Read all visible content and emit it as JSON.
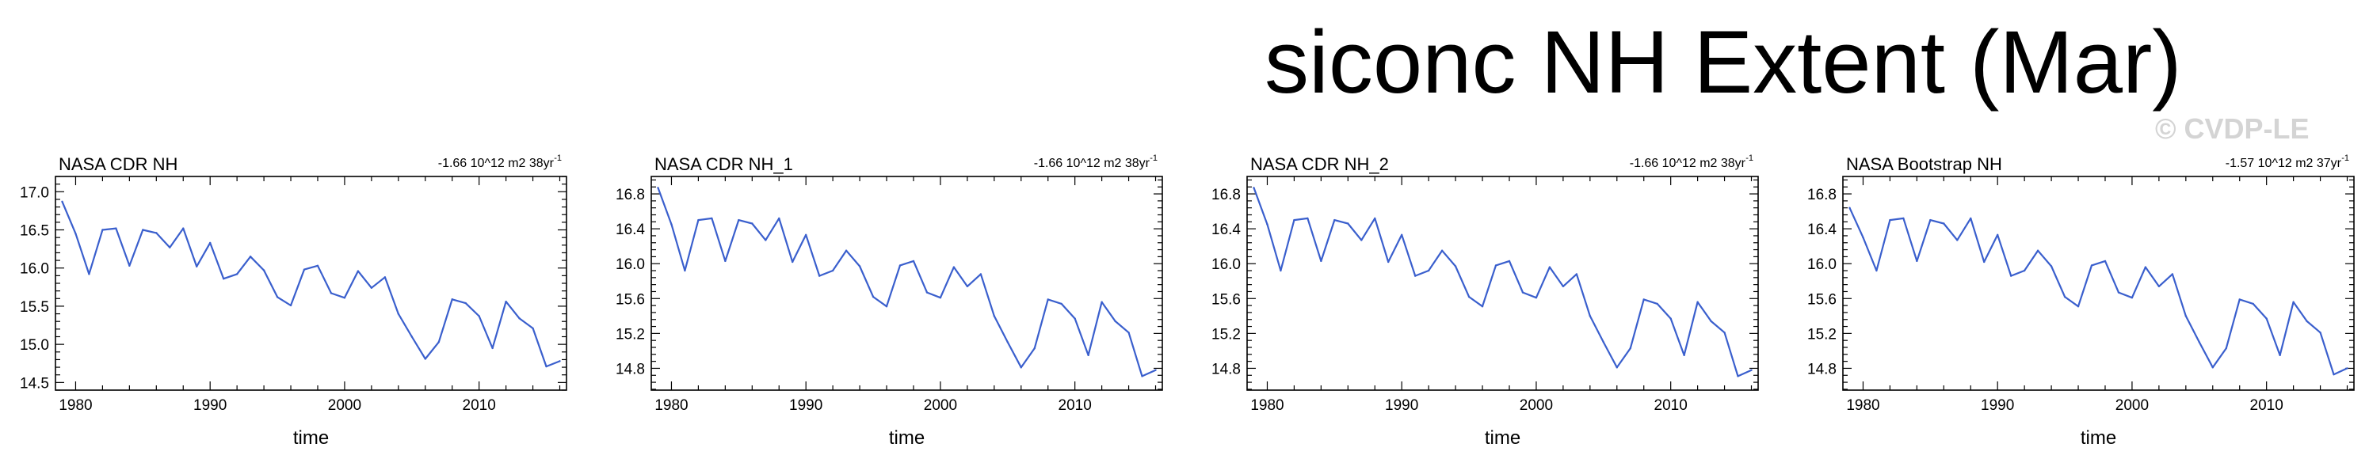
{
  "figure": {
    "title": "siconc NH Extent (Mar)",
    "watermark": "© CVDP-LE",
    "line_color": "#3a5fcd"
  },
  "chart_data": [
    {
      "type": "line",
      "title": "NASA CDR NH",
      "trend_text": "-1.66 10^12 m2 38yr",
      "trend_exp": "-1",
      "xlabel": "time",
      "ylabel": "",
      "xlim": [
        1978.5,
        2016.5
      ],
      "ylim": [
        14.4,
        17.2
      ],
      "xticks": [
        1980,
        1990,
        2000,
        2010
      ],
      "yticks": [
        14.5,
        15.0,
        15.5,
        16.0,
        16.5,
        17.0
      ],
      "ytick_labels": [
        "14.5",
        "15.0",
        "15.5",
        "16.0",
        "16.5",
        "17.0"
      ],
      "x": [
        1979,
        1980,
        1981,
        1982,
        1983,
        1984,
        1985,
        1986,
        1987,
        1988,
        1989,
        1990,
        1991,
        1992,
        1993,
        1994,
        1995,
        1996,
        1997,
        1998,
        1999,
        2000,
        2001,
        2002,
        2003,
        2004,
        2005,
        2006,
        2007,
        2008,
        2009,
        2010,
        2011,
        2012,
        2013,
        2014,
        2015,
        2016
      ],
      "values": [
        16.87,
        16.45,
        15.92,
        16.5,
        16.52,
        16.03,
        16.5,
        16.46,
        16.27,
        16.52,
        16.02,
        16.33,
        15.86,
        15.92,
        16.15,
        15.97,
        15.62,
        15.51,
        15.98,
        16.03,
        15.67,
        15.61,
        15.96,
        15.74,
        15.88,
        15.4,
        15.1,
        14.81,
        15.03,
        15.59,
        15.54,
        15.37,
        14.95,
        15.56,
        15.34,
        15.21,
        14.71,
        14.78
      ]
    },
    {
      "type": "line",
      "title": "NASA CDR NH_1",
      "trend_text": "-1.66 10^12 m2 38yr",
      "trend_exp": "-1",
      "xlabel": "time",
      "ylabel": "",
      "xlim": [
        1978.5,
        2016.5
      ],
      "ylim": [
        14.55,
        17.0
      ],
      "xticks": [
        1980,
        1990,
        2000,
        2010
      ],
      "yticks": [
        14.8,
        15.2,
        15.6,
        16.0,
        16.4,
        16.8
      ],
      "ytick_labels": [
        "14.8",
        "15.2",
        "15.6",
        "16.0",
        "16.4",
        "16.8"
      ],
      "x": [
        1979,
        1980,
        1981,
        1982,
        1983,
        1984,
        1985,
        1986,
        1987,
        1988,
        1989,
        1990,
        1991,
        1992,
        1993,
        1994,
        1995,
        1996,
        1997,
        1998,
        1999,
        2000,
        2001,
        2002,
        2003,
        2004,
        2005,
        2006,
        2007,
        2008,
        2009,
        2010,
        2011,
        2012,
        2013,
        2014,
        2015,
        2016
      ],
      "values": [
        16.87,
        16.45,
        15.92,
        16.5,
        16.52,
        16.03,
        16.5,
        16.46,
        16.27,
        16.52,
        16.02,
        16.33,
        15.86,
        15.92,
        16.15,
        15.97,
        15.62,
        15.51,
        15.98,
        16.03,
        15.67,
        15.61,
        15.96,
        15.74,
        15.88,
        15.4,
        15.1,
        14.81,
        15.03,
        15.59,
        15.54,
        15.37,
        14.95,
        15.56,
        15.34,
        15.21,
        14.71,
        14.78
      ]
    },
    {
      "type": "line",
      "title": "NASA CDR NH_2",
      "trend_text": "-1.66 10^12 m2 38yr",
      "trend_exp": "-1",
      "xlabel": "time",
      "ylabel": "",
      "xlim": [
        1978.5,
        2016.5
      ],
      "ylim": [
        14.55,
        17.0
      ],
      "xticks": [
        1980,
        1990,
        2000,
        2010
      ],
      "yticks": [
        14.8,
        15.2,
        15.6,
        16.0,
        16.4,
        16.8
      ],
      "ytick_labels": [
        "14.8",
        "15.2",
        "15.6",
        "16.0",
        "16.4",
        "16.8"
      ],
      "x": [
        1979,
        1980,
        1981,
        1982,
        1983,
        1984,
        1985,
        1986,
        1987,
        1988,
        1989,
        1990,
        1991,
        1992,
        1993,
        1994,
        1995,
        1996,
        1997,
        1998,
        1999,
        2000,
        2001,
        2002,
        2003,
        2004,
        2005,
        2006,
        2007,
        2008,
        2009,
        2010,
        2011,
        2012,
        2013,
        2014,
        2015,
        2016
      ],
      "values": [
        16.87,
        16.45,
        15.92,
        16.5,
        16.52,
        16.03,
        16.5,
        16.46,
        16.27,
        16.52,
        16.02,
        16.33,
        15.86,
        15.92,
        16.15,
        15.97,
        15.62,
        15.51,
        15.98,
        16.03,
        15.67,
        15.61,
        15.96,
        15.74,
        15.88,
        15.4,
        15.1,
        14.81,
        15.03,
        15.59,
        15.54,
        15.37,
        14.95,
        15.56,
        15.34,
        15.21,
        14.71,
        14.78
      ]
    },
    {
      "type": "line",
      "title": "NASA Bootstrap NH",
      "trend_text": "-1.57 10^12 m2 37yr",
      "trend_exp": "-1",
      "xlabel": "time",
      "ylabel": "",
      "xlim": [
        1978.5,
        2016.5
      ],
      "ylim": [
        14.55,
        17.0
      ],
      "xticks": [
        1980,
        1990,
        2000,
        2010
      ],
      "yticks": [
        14.8,
        15.2,
        15.6,
        16.0,
        16.4,
        16.8
      ],
      "ytick_labels": [
        "14.8",
        "15.2",
        "15.6",
        "16.0",
        "16.4",
        "16.8"
      ],
      "x": [
        1979,
        1980,
        1981,
        1982,
        1983,
        1984,
        1985,
        1986,
        1987,
        1988,
        1989,
        1990,
        1991,
        1992,
        1993,
        1994,
        1995,
        1996,
        1997,
        1998,
        1999,
        2000,
        2001,
        2002,
        2003,
        2004,
        2005,
        2006,
        2007,
        2008,
        2009,
        2010,
        2011,
        2012,
        2013,
        2014,
        2015,
        2016
      ],
      "values": [
        16.64,
        16.3,
        15.92,
        16.5,
        16.52,
        16.03,
        16.5,
        16.46,
        16.27,
        16.52,
        16.02,
        16.33,
        15.86,
        15.92,
        16.15,
        15.97,
        15.62,
        15.51,
        15.98,
        16.03,
        15.67,
        15.61,
        15.96,
        15.74,
        15.88,
        15.4,
        15.1,
        14.81,
        15.03,
        15.59,
        15.54,
        15.37,
        14.95,
        15.56,
        15.34,
        15.21,
        14.73,
        14.8
      ]
    }
  ]
}
